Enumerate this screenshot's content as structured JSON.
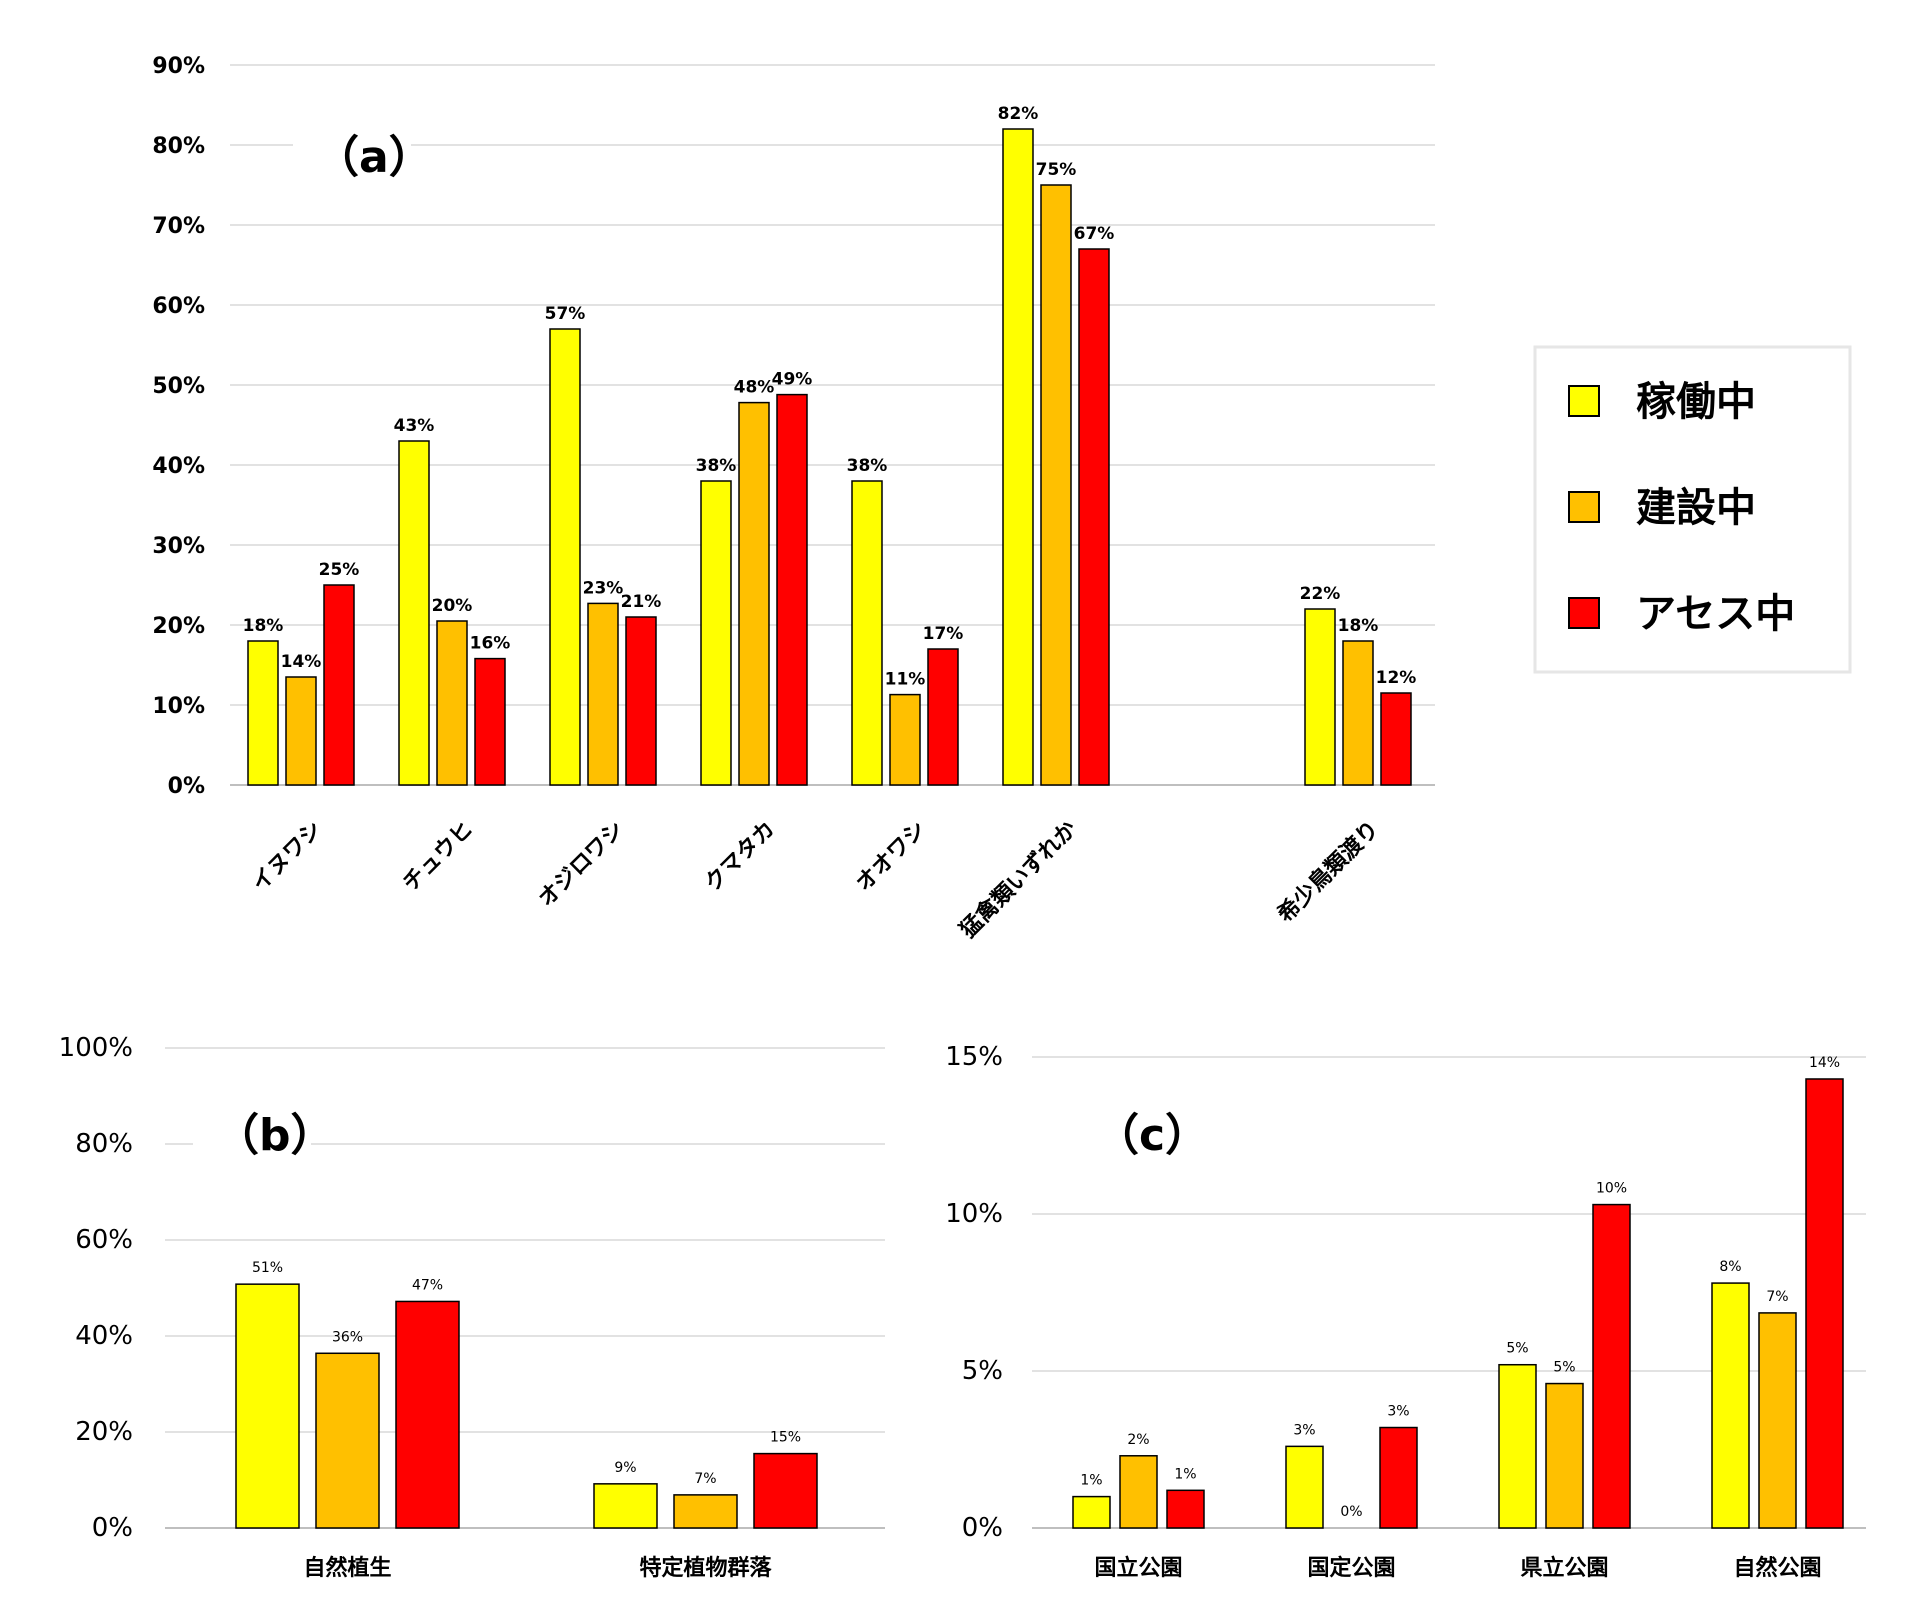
{
  "legend": {
    "items": [
      {
        "label": "稼働中",
        "color": "#FFFF00"
      },
      {
        "label": "建設中",
        "color": "#FFC000"
      },
      {
        "label": "アセス中",
        "color": "#FF0000"
      }
    ]
  },
  "chart_data": [
    {
      "type": "bar",
      "panel_label": "（a）",
      "ylim": [
        0,
        90
      ],
      "yticks": [
        0,
        10,
        20,
        30,
        40,
        50,
        60,
        70,
        80,
        90
      ],
      "categories": [
        "イヌワシ",
        "チュウヒ",
        "オジロワシ",
        "クマタカ",
        "オオワシ",
        "猛禽類いずれか",
        "",
        "希少鳥類渡り"
      ],
      "series": [
        {
          "name": "稼働中",
          "values": [
            18,
            43,
            57,
            38,
            38,
            82,
            null,
            22
          ],
          "labels": [
            "18%",
            "43%",
            "57%",
            "38%",
            "38%",
            "82%",
            "",
            "22%"
          ]
        },
        {
          "name": "建設中",
          "values": [
            13.5,
            20.5,
            22.7,
            47.8,
            11.3,
            75,
            null,
            18
          ],
          "labels": [
            "14%",
            "20%",
            "23%",
            "48%",
            "11%",
            "75%",
            "",
            "18%"
          ]
        },
        {
          "name": "アセス中",
          "values": [
            25,
            15.8,
            21,
            48.8,
            17,
            67,
            null,
            11.5
          ],
          "labels": [
            "25%",
            "16%",
            "21%",
            "49%",
            "17%",
            "67%",
            "",
            "12%"
          ]
        }
      ],
      "grid": true,
      "legend_position": "right"
    },
    {
      "type": "bar",
      "panel_label": "（b）",
      "ylim": [
        0,
        100
      ],
      "yticks": [
        0,
        20,
        40,
        60,
        80,
        100
      ],
      "categories": [
        "自然植生",
        "特定植物群落"
      ],
      "series": [
        {
          "name": "稼働中",
          "values": [
            50.8,
            9.2
          ],
          "labels": [
            "51%",
            "9%"
          ]
        },
        {
          "name": "建設中",
          "values": [
            36.4,
            6.9
          ],
          "labels": [
            "36%",
            "7%"
          ]
        },
        {
          "name": "アセス中",
          "values": [
            47.2,
            15.5
          ],
          "labels": [
            "47%",
            "15%"
          ]
        }
      ],
      "grid": true
    },
    {
      "type": "bar",
      "panel_label": "（c）",
      "ylim": [
        0,
        15
      ],
      "yticks": [
        0,
        5,
        10,
        15
      ],
      "categories": [
        "国立公園",
        "国定公園",
        "県立公園",
        "自然公園"
      ],
      "series": [
        {
          "name": "稼働中",
          "values": [
            1.0,
            2.6,
            5.2,
            7.8
          ],
          "labels": [
            "1%",
            "3%",
            "5%",
            "8%"
          ]
        },
        {
          "name": "建設中",
          "values": [
            2.3,
            0,
            4.6,
            6.85
          ],
          "labels": [
            "2%",
            "0%",
            "5%",
            "7%"
          ]
        },
        {
          "name": "アセス中",
          "values": [
            1.2,
            3.2,
            10.3,
            14.3
          ],
          "labels": [
            "1%",
            "3%",
            "10%",
            "14%"
          ]
        }
      ],
      "grid": true
    }
  ]
}
